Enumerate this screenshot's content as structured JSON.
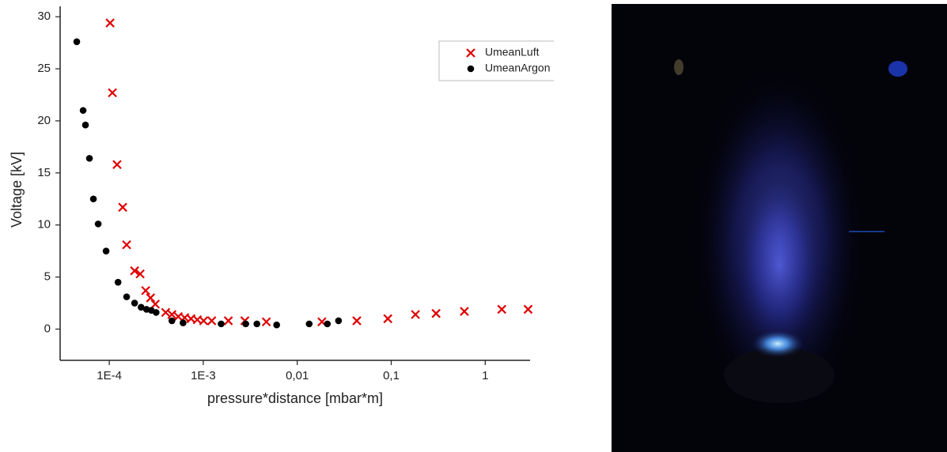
{
  "chart_data": {
    "type": "scatter",
    "x_label": "pressure*distance [mbar*m]",
    "y_label": "Voltage [kV]",
    "log_x": true,
    "xlim": [
      3e-05,
      3
    ],
    "ylim": [
      -3,
      31
    ],
    "xticks": [
      {
        "value": 0.0001,
        "label": "1E-4"
      },
      {
        "value": 0.001,
        "label": "1E-3"
      },
      {
        "value": 0.01,
        "label": "0,01"
      },
      {
        "value": 0.1,
        "label": "0,1"
      },
      1
    ],
    "yticks": [
      0,
      5,
      10,
      15,
      20,
      25,
      30
    ],
    "grid": false,
    "legend": "upper right",
    "series": [
      {
        "name": "UmeanLuft",
        "color": "#e00000",
        "marker": "x",
        "x": [
          0.000102,
          0.000108,
          0.000121,
          0.000139,
          0.000153,
          0.000186,
          0.000213,
          0.000244,
          0.000275,
          0.000309,
          0.000398,
          0.000464,
          0.000542,
          0.000634,
          0.00074,
          0.000864,
          0.00101,
          0.00123,
          0.00185,
          0.00277,
          0.00469,
          0.0183,
          0.043,
          0.092,
          0.181,
          0.3,
          0.6,
          1.5,
          2.86
        ],
        "values": [
          29.4,
          22.7,
          15.8,
          11.7,
          8.1,
          5.6,
          5.3,
          3.7,
          3.0,
          2.4,
          1.6,
          1.4,
          1.2,
          1.1,
          1.0,
          0.9,
          0.8,
          0.8,
          0.8,
          0.8,
          0.7,
          0.7,
          0.8,
          1.0,
          1.4,
          1.5,
          1.7,
          1.9,
          1.9
        ]
      },
      {
        "name": "UmeanArgon",
        "color": "#000000",
        "marker": "circle",
        "x": [
          4.51e-05,
          5.27e-05,
          5.58e-05,
          6.15e-05,
          6.78e-05,
          7.62e-05,
          9.25e-05,
          0.000124,
          0.000153,
          0.000186,
          0.000218,
          0.000249,
          0.00028,
          0.000315,
          0.000464,
          0.00061,
          0.00155,
          0.00283,
          0.00372,
          0.00604,
          0.0134,
          0.0209,
          0.0275
        ],
        "values": [
          27.6,
          21.0,
          19.6,
          16.4,
          12.5,
          10.1,
          7.5,
          4.5,
          3.1,
          2.5,
          2.1,
          1.9,
          1.8,
          1.6,
          0.8,
          0.6,
          0.5,
          0.5,
          0.5,
          0.4,
          0.5,
          0.5,
          0.8
        ]
      }
    ]
  }
}
